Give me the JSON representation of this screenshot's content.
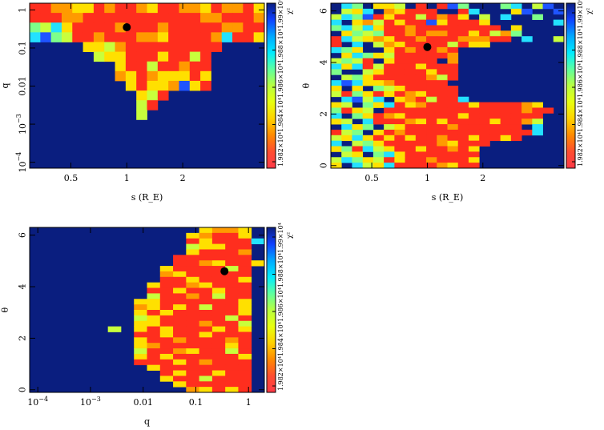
{
  "chart_data": [
    {
      "type": "heatmap",
      "name": "s-vs-q",
      "xlabel": "s (R_E)",
      "ylabel": "q",
      "x_scale": "log",
      "y_scale": "log",
      "xlim": [
        0.3,
        5.5
      ],
      "ylim": [
        7e-05,
        1.5
      ],
      "x_ticks": [
        {
          "value": 0.5,
          "label": "0.5"
        },
        {
          "value": 1,
          "label": "1"
        },
        {
          "value": 2,
          "label": "2"
        }
      ],
      "y_ticks": [
        {
          "value": 1,
          "label": "1"
        },
        {
          "value": 0.1,
          "label": "0.1"
        },
        {
          "value": 0.01,
          "label": "0.01"
        },
        {
          "value": 0.001,
          "label": "10^-3"
        },
        {
          "value": 0.0001,
          "label": "10^-4"
        }
      ],
      "best_fit": {
        "x": 1.0,
        "y": 0.35
      },
      "grid_rows": 17,
      "grid_cols": 22,
      "grid": [
        "RROOYYRORROYRROOYROORY",
        "RRROORRRRRRRRRRROORRRO",
        "LGCYRRRRORRRORRRRROORR",
        "CBLGRRORRROOYRRRROCRRY",
        "DDDDDYYGORRRRRRRRRDDDD",
        "DDDDDDGYYRRRYRRGRDDDDD",
        "DDDDDDDDYRRGRRORRDDDDD",
        "DDDDDDDDOYROYYYRYDDDDD",
        "DDDDDDDDDYRYYOBYRDDDDD",
        "DDDDDDDDDDYGRDDDDDDDDD",
        "DDDDDDDDDDGRDDDDDDDDDD",
        "DDDDDDDDDDGDDDDDDDDDDD",
        "DDDDDDDDDDDDDDDDDDDDDD",
        "DDDDDDDDDDDDDDDDDDDDDD",
        "DDDDDDDDDDDDDDDDDDDDDD",
        "DDDDDDDDDDDDDDDDDDDDDD",
        "DDDDDDDDDDDDDDDDDDDDDD"
      ]
    },
    {
      "type": "heatmap",
      "name": "s-vs-theta",
      "xlabel": "s (R_E)",
      "ylabel": "θ",
      "x_scale": "log",
      "y_scale": "linear",
      "xlim": [
        0.3,
        5.5
      ],
      "ylim": [
        -0.1,
        6.3
      ],
      "x_ticks": [
        {
          "value": 0.5,
          "label": "0.5"
        },
        {
          "value": 1,
          "label": "1"
        },
        {
          "value": 2,
          "label": "2"
        }
      ],
      "y_ticks": [
        {
          "value": 0,
          "label": "0"
        },
        {
          "value": 2,
          "label": "2"
        },
        {
          "value": 4,
          "label": "4"
        },
        {
          "value": 6,
          "label": "6"
        }
      ],
      "best_fit": {
        "x": 1.0,
        "y": 4.6
      },
      "grid_rows": 30,
      "grid_cols": 22,
      "grid": [
        "DCLDYYGDRDRBLDDDLCDGBD",
        "DGYCDOYRRRDDRCDDDYBDDB",
        "GCLBRYRRGRORYDGDCDDLDD",
        "CDYOGRYRRBYRRRYDDDDDDC",
        "LCGCYRRORRRRRRRRDYDDDD",
        "DYLGLRROROORRYRGOLDDDD",
        "RCGYOYRRORRROOORRDCDDG",
        "RDCDGOYRRRRGRYYDDDDDDD",
        "CLYDDYRORRORDDDDDDDDDD",
        "DYCLYGRRRRRODDDDDDDDDD",
        "GLGRDYRRRRDODDDDDDDDDD",
        "CYCRGRRRYRRRDDDDDDDDDD",
        "LDDGYRRRRYRRDDDDDDDDDD",
        "DGLYRRRRROGRDDDDDDDDDD",
        "CBCYYORRRRRDDDDDDDDDDD",
        "YDYDLGYRRRRRDDDDDDDDDD",
        "GRLYRYROYRRRDDDDDDDDDD",
        "DCBGCDYORGRRCDDDDDDDDD",
        "YGDLYCRYORRRRYRRRROYDD",
        "LRYGDRRRRRRRRRRRRRORRD",
        "CDLYROYRRRRRYRRRRRRRDD",
        "YGDCRRROYRYRRRRYRROGDD",
        "DCYLDGYRRRRORRRRRRDCDD",
        "RGLDYRORRRRRRRRRRRRCDD",
        "GYCYRYRYRRORRYRRYRDDDD",
        "CDGLYRRRRROYRRRDDDDDDD",
        "YLRCGYRRYRRORYDDDDDDDD",
        "DGYDLCYRRRRRRRDDDDDDDD",
        "GCLYGRYRRORRRYDDDDDDDD",
        "YDCGYCRRRROYRRDDDDDDDD"
      ]
    },
    {
      "type": "heatmap",
      "name": "q-vs-theta",
      "xlabel": "q",
      "ylabel": "θ",
      "x_scale": "log",
      "y_scale": "linear",
      "xlim": [
        7e-05,
        2.0
      ],
      "ylim": [
        -0.1,
        6.3
      ],
      "x_ticks": [
        {
          "value": 0.0001,
          "label": "10^-4"
        },
        {
          "value": 0.001,
          "label": "10^-3"
        },
        {
          "value": 0.01,
          "label": "0.01"
        },
        {
          "value": 0.1,
          "label": "0.1"
        },
        {
          "value": 1,
          "label": "1"
        }
      ],
      "y_ticks": [
        {
          "value": 0,
          "label": "0"
        },
        {
          "value": 2,
          "label": "2"
        },
        {
          "value": 4,
          "label": "4"
        },
        {
          "value": 6,
          "label": "6"
        }
      ],
      "best_fit": {
        "x": 0.35,
        "y": 4.6
      },
      "grid_rows": 30,
      "grid_cols": 18,
      "grid": [
        "DDDDDDDDDDDDDYOOYD",
        "DDDDDDDDDDDDYORRYD",
        "DDDDDDDDDDDDRYRRRC",
        "DDDDDDDDDDDDGYYRRD",
        "DDDDDDDDDDDDYRRROD",
        "DDDDDDDDDDDRRRRRRD",
        "DDDDDDDDDDDRROYRRY",
        "DDDDDDDDDDYRRRRGRD",
        "DDDDDDDDDDOYRRRRRD",
        "DDDDDDDDDDRRYRRRYD",
        "DDDDDDDDDYRROYRRRD",
        "DDDDDDDDDRRYRRYRRD",
        "DDDDDDDDDGRRORGRRD",
        "DDDDDDDDYYRRRRRRYD",
        "DDDDDDDDOYRYRGRRYD",
        "DDDDDDDDYRYRRRRRYD",
        "DDDDDDDDGYRRRRRGRD",
        "DDDDDDDDYYRRRORRGD",
        "DDDDDDGDYRYRRRYRYD",
        "DDDDDDDDRRYRRYRRRD",
        "DDDDDDDDYRRORRRORD",
        "DDDDDDDDYORRRRRYRD",
        "DDDDDDDDGRROYRRGRD",
        "DDDDDDDDYRYRRRRRYD",
        "DDDDDDDDRRRYRORRRD",
        "DDDDDDDDDYRRRRRRRD",
        "DDDDDDDDDDRYRRYRRD",
        "DDDDDDDDDDYRRGRRRD",
        "DDDDDDDDDDDYRRRRRD",
        "DDDDDDDDDDDDOYRYRD"
      ]
    }
  ],
  "colorbar": {
    "label": "χ²",
    "tick_labels": [
      "1.982×10⁴",
      "1.984×10⁴",
      "1.986×10⁴",
      "1.988×10⁴",
      "1.99×10⁴"
    ]
  },
  "palette": {
    "D": "#0a1e7f",
    "B": "#1f54ff",
    "C": "#23e1ff",
    "L": "#7dff8a",
    "G": "#c8ff3c",
    "Y": "#ffe000",
    "O": "#ff9a00",
    "R": "#ff2e1e"
  },
  "colorbar_stops": [
    "#ff3a48",
    "#ff4d30",
    "#ff8a00",
    "#ffd200",
    "#e8ff10",
    "#b8ff40",
    "#5dffa0",
    "#00ecff",
    "#00a8ff",
    "#1040ff",
    "#0a1e7f"
  ]
}
